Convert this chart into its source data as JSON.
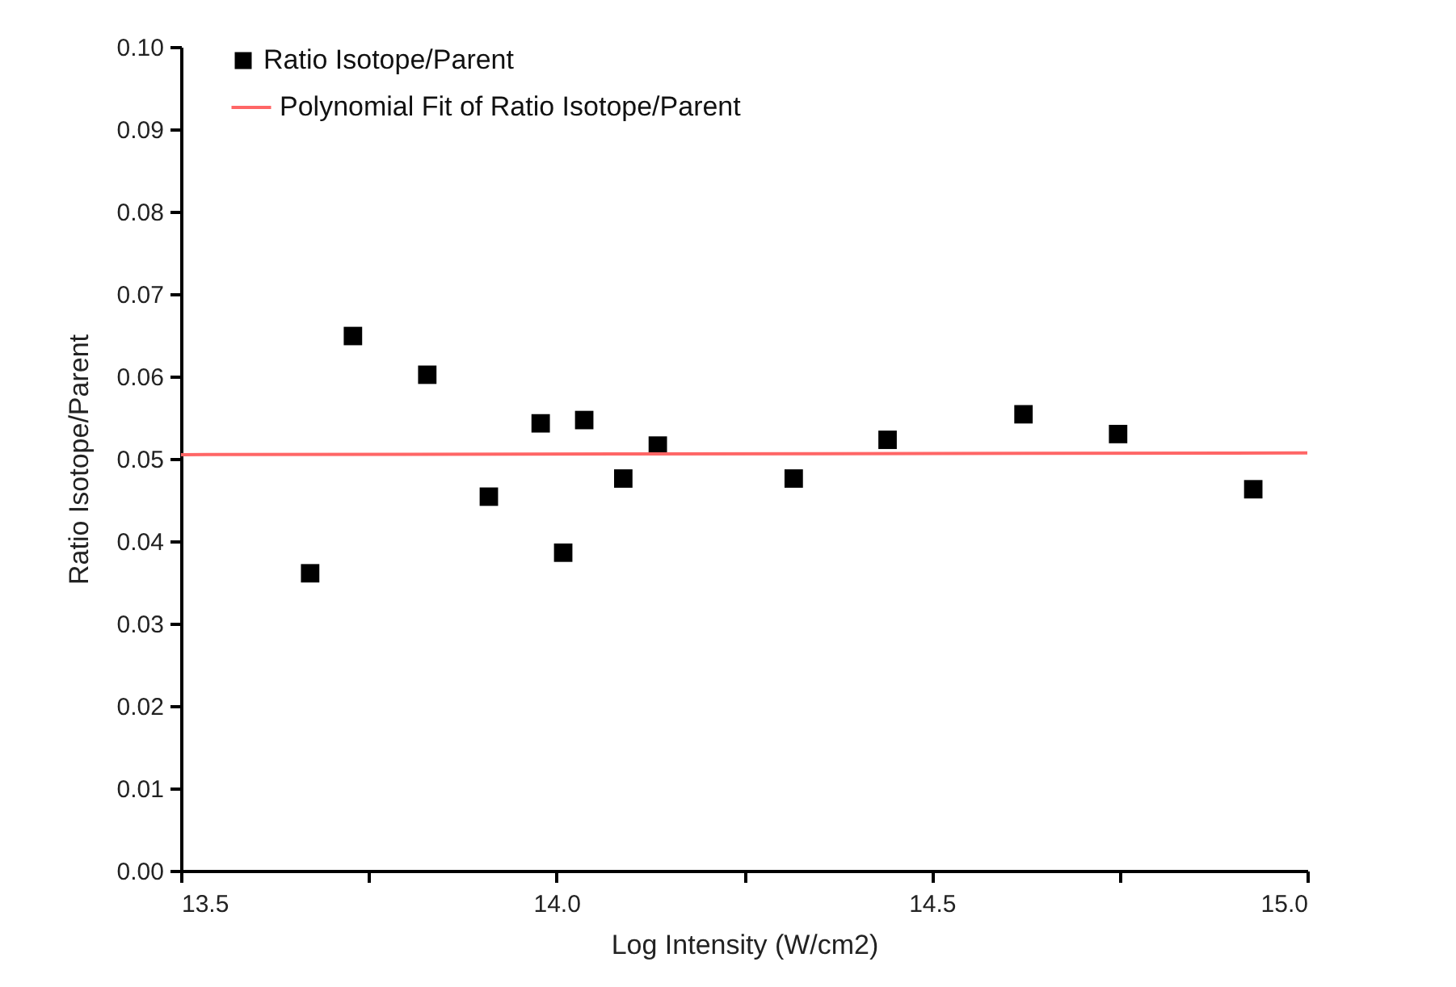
{
  "chart_data": {
    "type": "scatter",
    "xlabel": "Log Intensity (W/cm2)",
    "ylabel": "Ratio Isotope/Parent",
    "xlim": [
      13.5,
      15.0
    ],
    "ylim": [
      0,
      0.1
    ],
    "xticks": [
      {
        "value": 13.5,
        "label": "13.5"
      },
      {
        "value": 13.75,
        "label": null
      },
      {
        "value": 14.0,
        "label": "14.0"
      },
      {
        "value": 14.25,
        "label": null
      },
      {
        "value": 14.5,
        "label": "14.5"
      },
      {
        "value": 14.75,
        "label": null
      },
      {
        "value": 15.0,
        "label": "15.0"
      }
    ],
    "yticks": [
      {
        "value": 0,
        "label": "0.00"
      },
      {
        "value": 0.01,
        "label": "0.01"
      },
      {
        "value": 0.02,
        "label": "0.02"
      },
      {
        "value": 0.03,
        "label": "0.03"
      },
      {
        "value": 0.04,
        "label": "0.04"
      },
      {
        "value": 0.05,
        "label": "0.05"
      },
      {
        "value": 0.06,
        "label": "0.06"
      },
      {
        "value": 0.07,
        "label": "0.07"
      },
      {
        "value": 0.08,
        "label": "0.08"
      },
      {
        "value": 0.09,
        "label": "0.09"
      },
      {
        "value": 0.1,
        "label": "0.10"
      }
    ],
    "legend": "top left",
    "grid": false,
    "series": [
      {
        "name": "Ratio Isotope/Parent",
        "marker": "square",
        "color": "#000000",
        "x": [
          13.672,
          13.729,
          13.828,
          13.91,
          13.979,
          14.009,
          14.037,
          14.089,
          14.135,
          14.316,
          14.441,
          14.622,
          14.748,
          14.928
        ],
        "values": [
          0.0361,
          0.0649,
          0.0602,
          0.0454,
          0.0543,
          0.0386,
          0.0547,
          0.0476,
          0.0516,
          0.0476,
          0.0523,
          0.0554,
          0.053,
          0.0463
        ]
      },
      {
        "name": "Polynomial Fit of Ratio Isotope/Parent",
        "type": "line",
        "color": "#ff6666",
        "x": [
          13.5,
          15.0
        ],
        "values": [
          0.0505,
          0.0507
        ]
      }
    ]
  }
}
